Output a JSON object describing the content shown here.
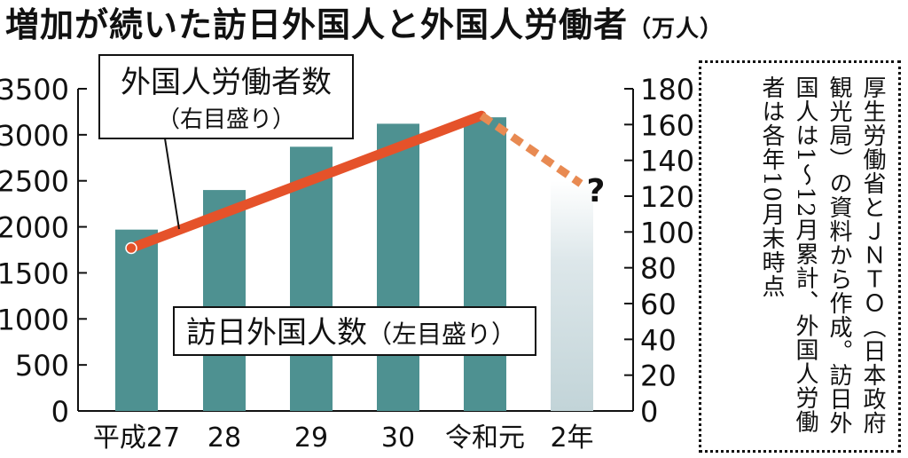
{
  "title": "増加が続いた訪日外国人と外国人労働者",
  "title_unit": "（万人）",
  "chart_data": {
    "type": "bar",
    "categories": [
      "平成27",
      "28",
      "29",
      "30",
      "令和元",
      "2年"
    ],
    "series": [
      {
        "name": "訪日外国人数",
        "type": "bar",
        "axis": "left",
        "values": [
          1970,
          2400,
          2870,
          3120,
          3190,
          2500
        ],
        "estimated_last": true,
        "color": "#4e9191",
        "estimated_color": "#c9d9dd"
      },
      {
        "name": "外国人労働者数",
        "type": "line",
        "axis": "right",
        "values": [
          91,
          null,
          null,
          null,
          165,
          127
        ],
        "dashed_last": true,
        "color": "#e5522a",
        "dashed_color": "#e88a52"
      }
    ],
    "left_axis": {
      "ylim": [
        0,
        3500
      ],
      "ticks": [
        0,
        500,
        1000,
        1500,
        2000,
        2500,
        3000,
        3500
      ]
    },
    "right_axis": {
      "ylim": [
        0,
        180
      ],
      "ticks": [
        0,
        20,
        40,
        60,
        80,
        100,
        120,
        140,
        160,
        180
      ]
    },
    "labels": {
      "line_label": "外国人労働者数",
      "line_sub": "（右目盛り）",
      "bar_label": "訪日外国人数",
      "bar_sub": "（左目盛り）",
      "question": "?"
    }
  },
  "note": "厚生労働省とＪＮＴＯ（日本政府観光局）の資料から作成。訪日外国人は1〜12月累計、外国人労働者は各年10月末時点"
}
